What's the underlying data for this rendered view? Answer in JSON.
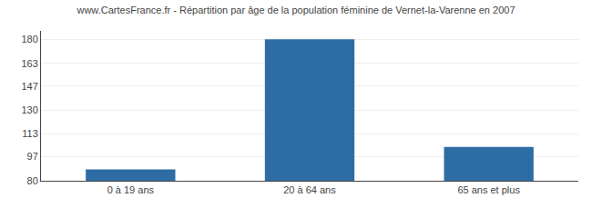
{
  "chart_data": {
    "type": "bar",
    "title": "www.CartesFrance.fr - Répartition par âge de la population féminine de Vernet-la-Varenne en 2007",
    "categories": [
      "0 à 19 ans",
      "20 à 64 ans",
      "65 ans et plus"
    ],
    "values": [
      88,
      180,
      104
    ],
    "color": "#2e6da4",
    "ylim": [
      80,
      186
    ],
    "yticks": [
      80,
      97,
      113,
      130,
      147,
      163,
      180
    ],
    "grid": true
  }
}
